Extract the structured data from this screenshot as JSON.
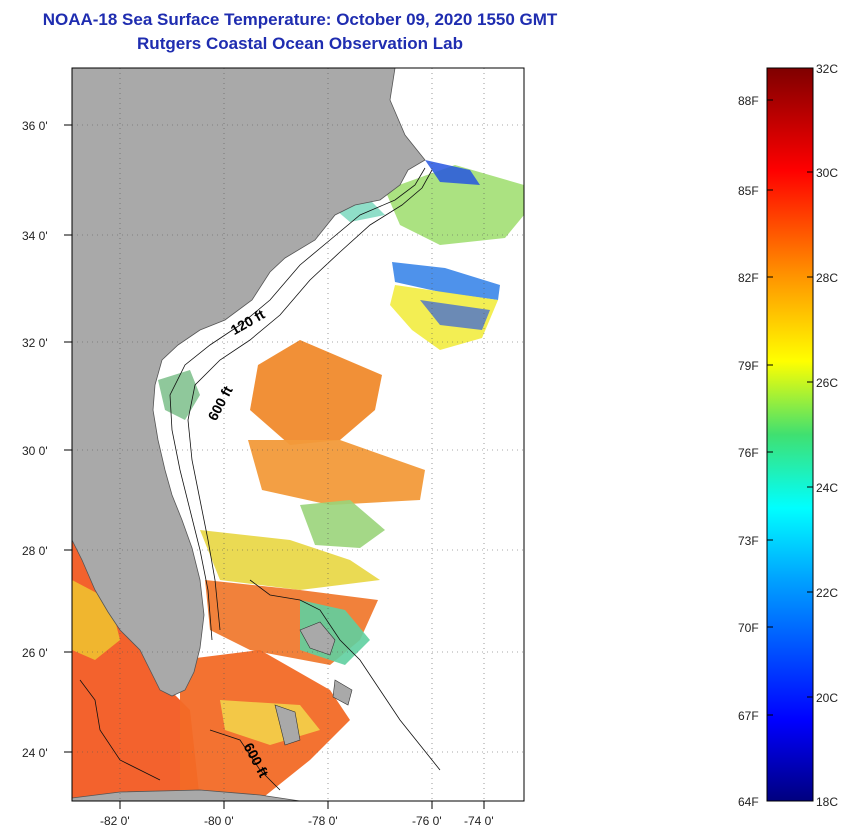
{
  "header": {
    "title": "NOAA-18 Sea Surface Temperature:  October 09, 2020 1550 GMT",
    "subtitle": "Rutgers Coastal Ocean Observation Lab"
  },
  "map": {
    "lon_labels": [
      "-82 0'",
      "-80 0'",
      "-78 0'",
      "-76 0'",
      "-74 0'"
    ],
    "lat_labels": [
      "36 0'",
      "34 0'",
      "32 0'",
      "30 0'",
      "28 0'",
      "26 0'",
      "24 0'"
    ],
    "isobath_labels": [
      "120 ft",
      "600 ft",
      "600 ft"
    ],
    "colors": {
      "land": "#a9a9a9",
      "ocean_nodata": "#ffffff"
    }
  },
  "legend": {
    "fahrenheit": [
      "88F",
      "85F",
      "82F",
      "79F",
      "76F",
      "73F",
      "70F",
      "67F",
      "64F"
    ],
    "celsius": [
      "32C",
      "30C",
      "28C",
      "26C",
      "24C",
      "22C",
      "20C",
      "18C"
    ],
    "range_c": [
      18,
      32
    ]
  }
}
